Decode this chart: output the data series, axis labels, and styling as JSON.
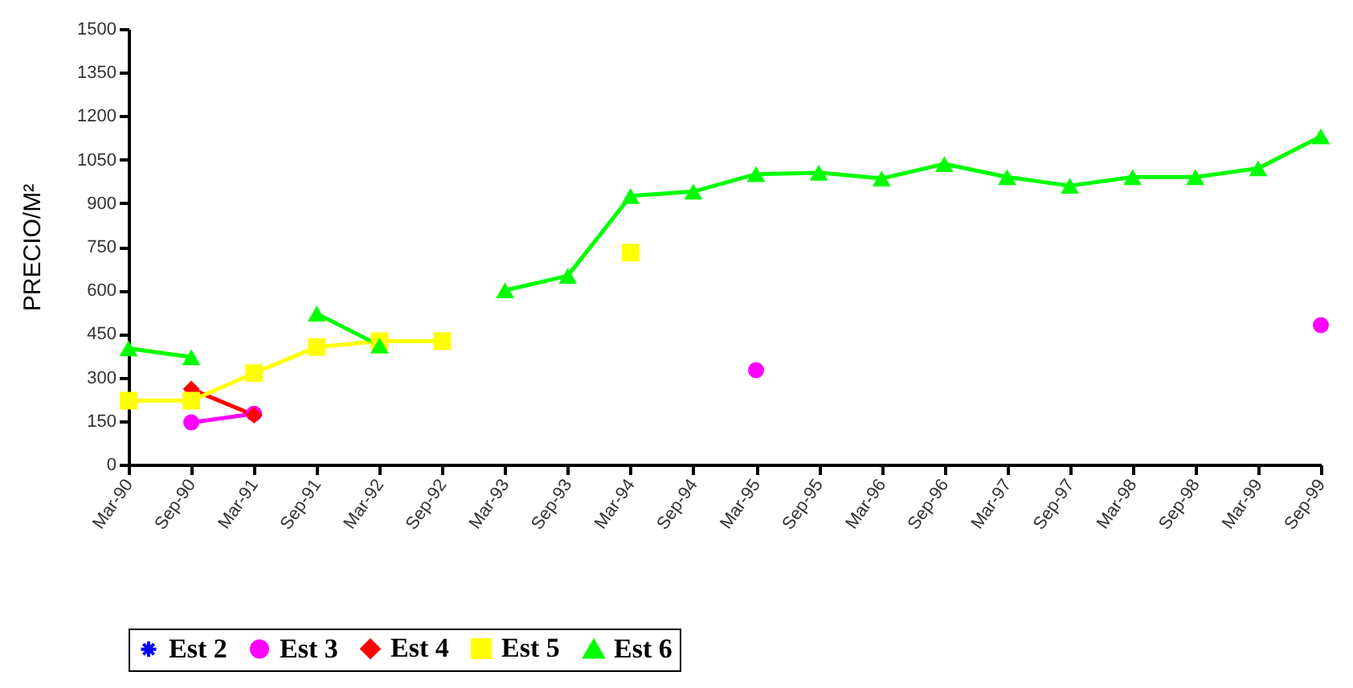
{
  "chart_data": {
    "type": "line",
    "ylabel": "PRECIO/M²",
    "categories": [
      "Mar-90",
      "Sep-90",
      "Mar-91",
      "Sep-91",
      "Mar-92",
      "Sep-92",
      "Mar-93",
      "Sep-93",
      "Mar-94",
      "Sep-94",
      "Mar-95",
      "Sep-95",
      "Mar-96",
      "Sep-96",
      "Mar-97",
      "Sep-97",
      "Mar-98",
      "Sep-98",
      "Mar-99",
      "Sep-99"
    ],
    "series": [
      {
        "name": "Est 2",
        "color": "#0000ff",
        "marker": "star",
        "values": [
          null,
          null,
          null,
          null,
          null,
          null,
          null,
          null,
          null,
          null,
          null,
          null,
          null,
          null,
          null,
          null,
          null,
          null,
          null,
          null
        ]
      },
      {
        "name": "Est 3",
        "color": "#ff00ff",
        "marker": "circle",
        "values": [
          null,
          145,
          175,
          null,
          null,
          null,
          null,
          null,
          null,
          null,
          325,
          null,
          null,
          null,
          null,
          null,
          null,
          null,
          null,
          480
        ]
      },
      {
        "name": "Est 4",
        "color": "#ff0000",
        "marker": "diamond",
        "values": [
          null,
          260,
          170,
          null,
          null,
          null,
          null,
          null,
          null,
          null,
          null,
          null,
          null,
          null,
          null,
          null,
          null,
          null,
          null,
          null
        ]
      },
      {
        "name": "Est 5",
        "color": "#ffff00",
        "marker": "square",
        "values": [
          220,
          220,
          315,
          405,
          425,
          425,
          null,
          null,
          730,
          null,
          null,
          null,
          null,
          null,
          null,
          null,
          null,
          null,
          null,
          null
        ]
      },
      {
        "name": "Est 6",
        "color": "#00ff00",
        "marker": "triangle",
        "values": [
          400,
          370,
          null,
          520,
          410,
          null,
          600,
          650,
          925,
          940,
          1000,
          1005,
          985,
          1035,
          990,
          960,
          990,
          990,
          1020,
          1130
        ]
      }
    ],
    "ylim": [
      0,
      1500
    ],
    "yticks": [
      0,
      150,
      300,
      450,
      600,
      750,
      900,
      1050,
      1200,
      1350,
      1500
    ],
    "grid": false,
    "legend": "bottom",
    "line_style": "solid"
  }
}
